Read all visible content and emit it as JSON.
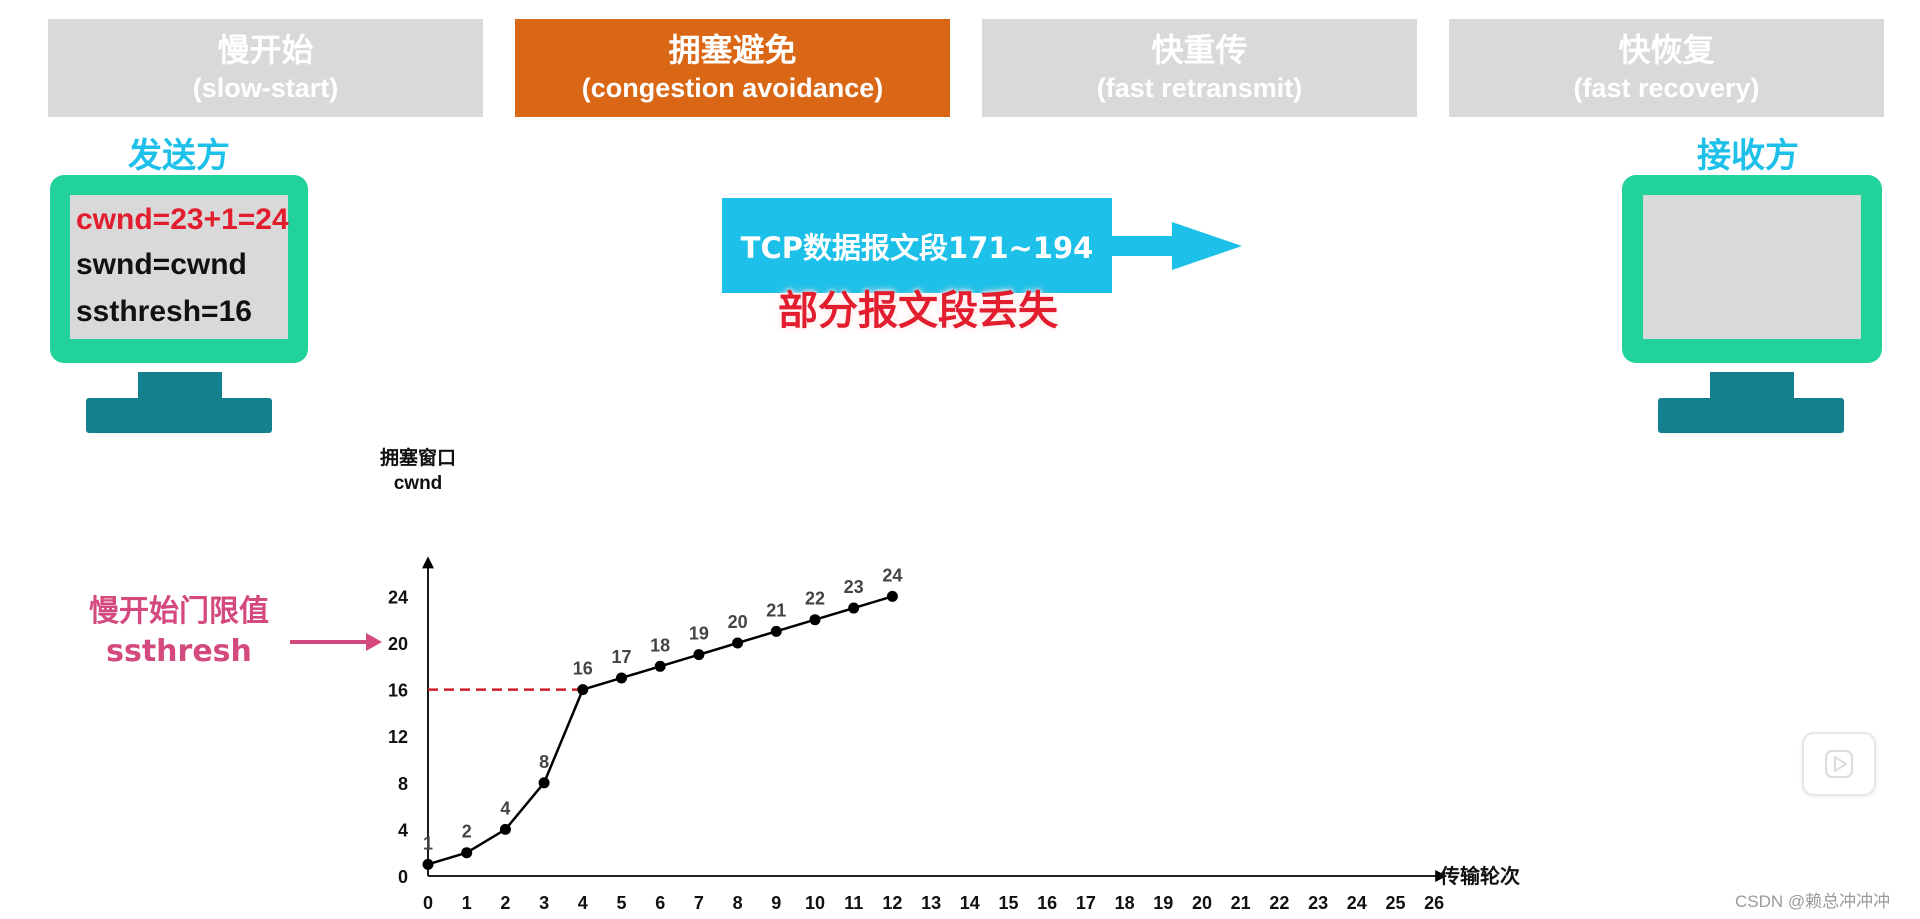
{
  "phases": [
    {
      "zh": "慢开始",
      "en": "(slow-start)",
      "active": false
    },
    {
      "zh": "拥塞避免",
      "en": "(congestion avoidance)",
      "active": true
    },
    {
      "zh": "快重传",
      "en": "(fast retransmit)",
      "active": false
    },
    {
      "zh": "快恢复",
      "en": "(fast recovery)",
      "active": false
    }
  ],
  "sender": {
    "label": "发送方",
    "cwnd_line": "cwnd=23+1=24",
    "swnd_line": "swnd=cwnd",
    "ssthresh_line": "ssthresh=16"
  },
  "receiver": {
    "label": "接收方"
  },
  "packet": {
    "text": "TCP数据报文段171~194",
    "status": "部分报文段丢失"
  },
  "annotation": {
    "line1": "慢开始门限值",
    "line2": "ssthresh"
  },
  "colors": {
    "active_tab": "#d96715",
    "inactive_tab": "#d9d9d9",
    "sender_highlight": "#e21d2d",
    "monitor_frame": "#21d39a",
    "monitor_stand": "#14808f",
    "packet": "#1cc0e8",
    "ssthresh_line": "#d0202a",
    "annotation": "#d44a7e"
  },
  "watermark": "CSDN @赖总冲冲冲",
  "icons": {
    "player": "play-icon"
  },
  "chart_data": {
    "type": "line",
    "ylabel_line1": "拥塞窗口",
    "ylabel_line2": "cwnd",
    "xlabel": "传输轮次",
    "x_ticks": [
      0,
      1,
      2,
      3,
      4,
      5,
      6,
      7,
      8,
      9,
      10,
      11,
      12,
      13,
      14,
      15,
      16,
      17,
      18,
      19,
      20,
      21,
      22,
      23,
      24,
      25,
      26
    ],
    "y_ticks": [
      0,
      4,
      8,
      12,
      16,
      20,
      24
    ],
    "xlim": [
      0,
      26
    ],
    "ylim": [
      0,
      24
    ],
    "series": [
      {
        "x": [
          0,
          1,
          2,
          3,
          4,
          5,
          6,
          7,
          8,
          9,
          10,
          11,
          12
        ],
        "values": [
          1,
          2,
          4,
          8,
          16,
          17,
          18,
          19,
          20,
          21,
          22,
          23,
          24
        ]
      }
    ],
    "ssthresh": 16,
    "grid": false
  }
}
